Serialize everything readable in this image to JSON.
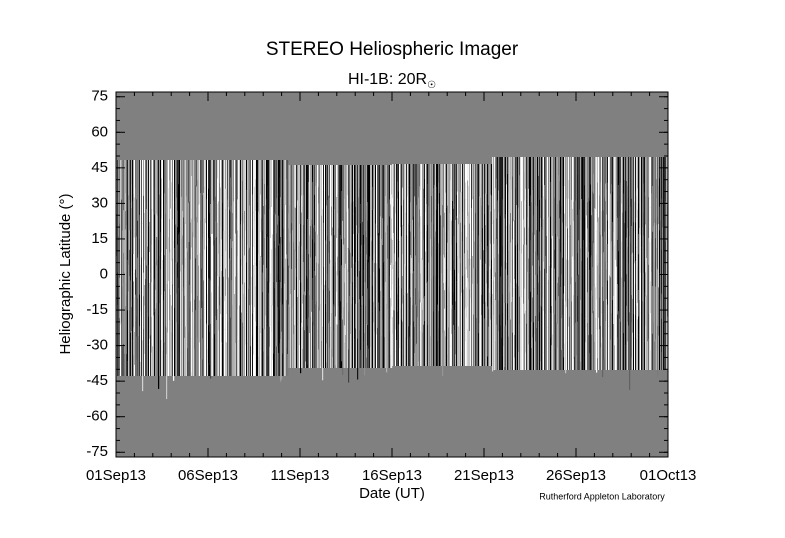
{
  "chart_data": {
    "type": "image",
    "title": "STEREO Heliospheric Imager",
    "subtitle": "HI-1B: 20R",
    "subtitle_subscript": "☉",
    "x_label": "Date (UT)",
    "y_label": "Heliographic Latitude (°)",
    "credit": "Rutherford Appleton Laboratory",
    "xlim": [
      "2013-09-01",
      "2013-10-01"
    ],
    "xticks": [
      {
        "value": "2013-09-01",
        "label": "01Sep13"
      },
      {
        "value": "2013-09-06",
        "label": "06Sep13"
      },
      {
        "value": "2013-09-11",
        "label": "11Sep13"
      },
      {
        "value": "2013-09-16",
        "label": "16Sep13"
      },
      {
        "value": "2013-09-21",
        "label": "21Sep13"
      },
      {
        "value": "2013-09-26",
        "label": "26Sep13"
      },
      {
        "value": "2013-10-01",
        "label": "01Oct13"
      }
    ],
    "ylim": [
      -77,
      77
    ],
    "yticks": [
      75,
      60,
      45,
      30,
      15,
      0,
      -15,
      -30,
      -45,
      -60,
      -75
    ],
    "background_color": "#808080"
  }
}
